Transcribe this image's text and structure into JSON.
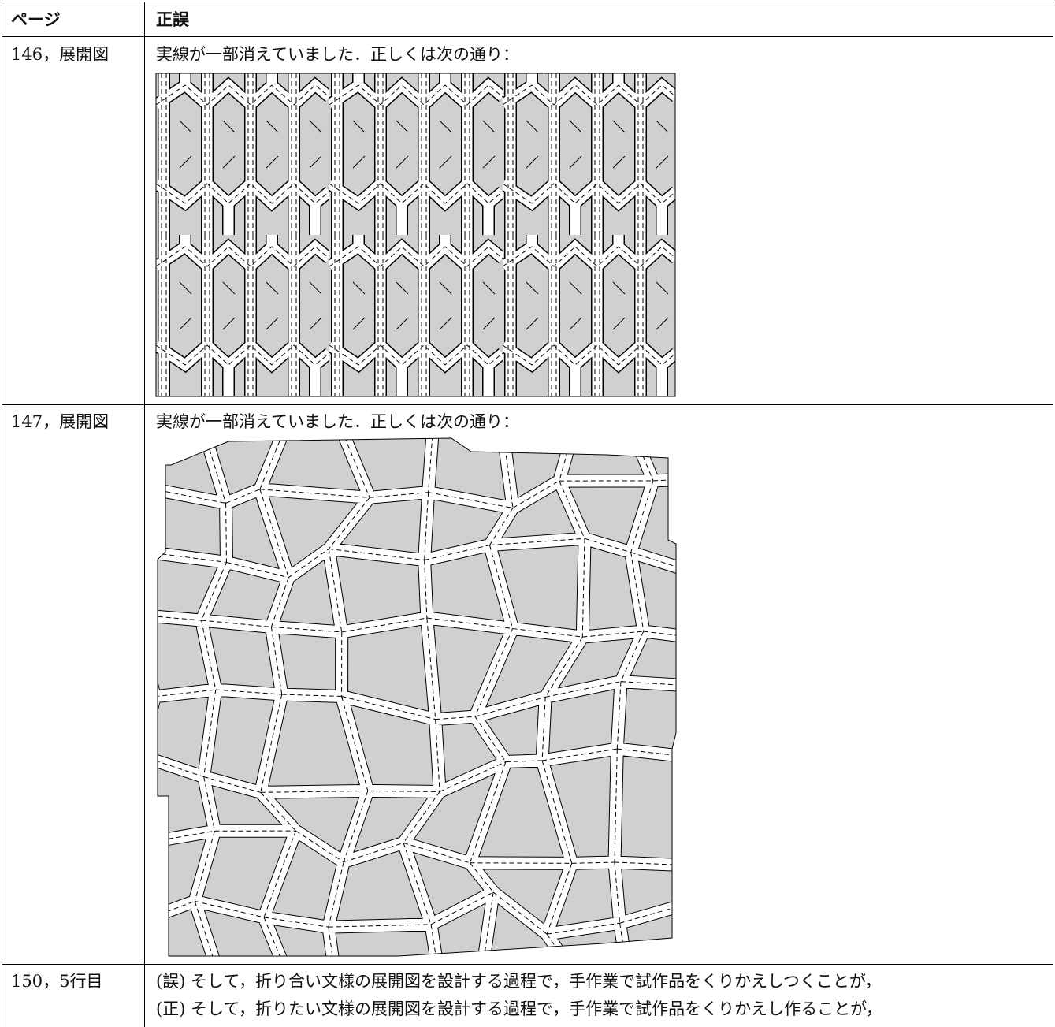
{
  "header": {
    "page": "ページ",
    "correction": "正誤"
  },
  "rows": [
    {
      "page": "146，展開図",
      "text": "実線が一部消えていました．正しくは次の通り："
    },
    {
      "page": "147，展開図",
      "text": "実線が一部消えていました．正しくは次の通り："
    },
    {
      "page": "150，5行目",
      "lines": [
        "(誤) そして，折り合い文様の展開図を設計する過程で，手作業で試作品をくりかえしつくことが，",
        "(正) そして，折りたい文様の展開図を設計する過程で，手作業で試作品をくりかえし作ることが，"
      ]
    }
  ]
}
